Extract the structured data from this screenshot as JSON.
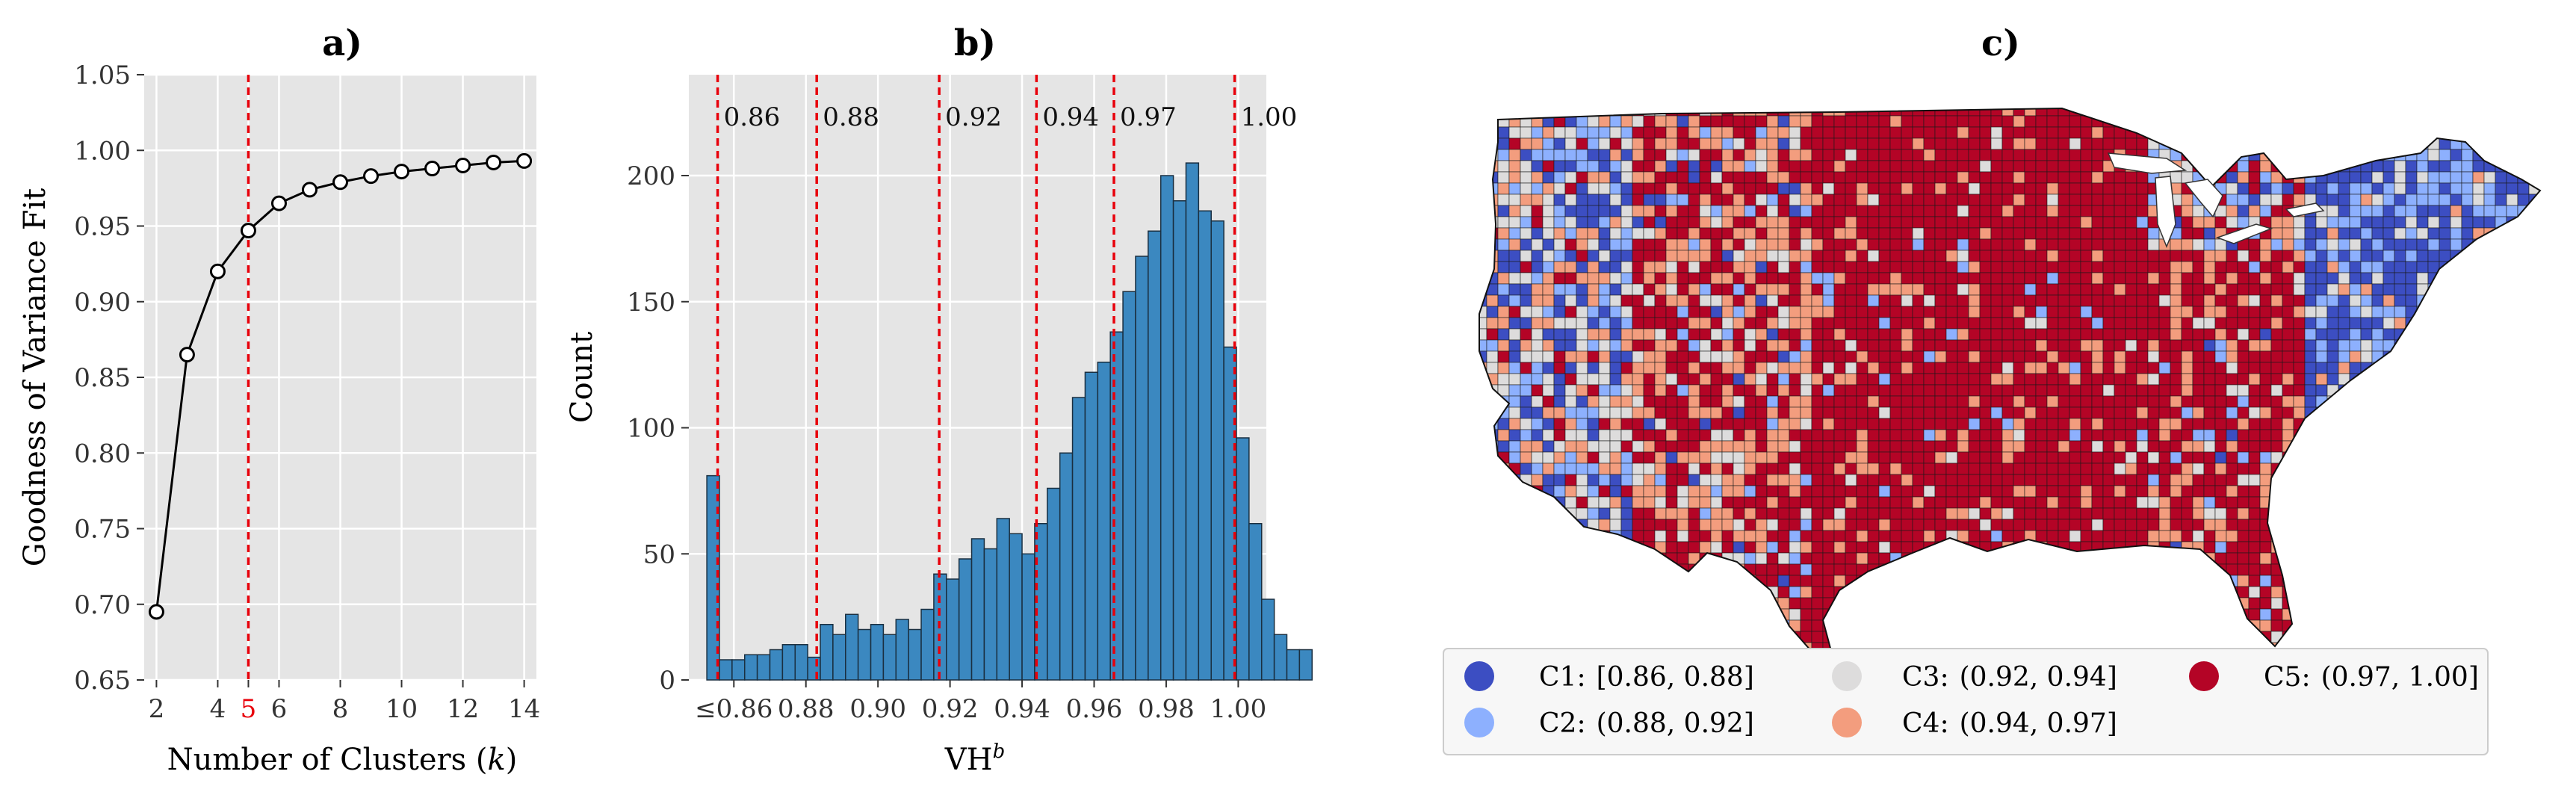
{
  "chart_data": [
    {
      "panel": "a",
      "type": "line",
      "title": "a)",
      "xlabel": "Number of Clusters (k)",
      "ylabel": "Goodness of Variance Fit",
      "x": [
        2,
        3,
        4,
        5,
        6,
        7,
        8,
        9,
        10,
        11,
        12,
        13,
        14
      ],
      "y": [
        0.695,
        0.865,
        0.92,
        0.947,
        0.965,
        0.974,
        0.979,
        0.983,
        0.986,
        0.988,
        0.99,
        0.992,
        0.993
      ],
      "xticks": [
        "2",
        "4",
        "5",
        "6",
        "8",
        "10",
        "12",
        "14"
      ],
      "highlight_x": "5",
      "yticks": [
        "0.65",
        "0.70",
        "0.75",
        "0.80",
        "0.85",
        "0.90",
        "0.95",
        "1.00",
        "1.05"
      ],
      "xlim": [
        1.6,
        14.4
      ],
      "ylim": [
        0.65,
        1.05
      ],
      "vline_x": 5,
      "colors": {
        "line": "#000000",
        "marker_face": "#ffffff",
        "vline": "#e8000b",
        "highlight_tick": "#e8000b",
        "background": "#e5e5e5",
        "grid": "#ffffff"
      }
    },
    {
      "panel": "b",
      "type": "bar",
      "title": "b)",
      "xlabel": "VH",
      "xlabel_sup": "b",
      "ylabel": "Count",
      "bin_start": 0.8525,
      "bin_width": 0.0035,
      "counts": [
        81,
        8,
        8,
        10,
        10,
        12,
        14,
        14,
        9,
        22,
        18,
        26,
        20,
        22,
        18,
        24,
        20,
        28,
        42,
        40,
        48,
        56,
        52,
        64,
        58,
        50,
        62,
        76,
        90,
        112,
        122,
        126,
        138,
        154,
        168,
        178,
        200,
        190,
        205,
        186,
        182,
        132,
        96,
        62,
        32,
        18,
        12,
        12
      ],
      "xticks": [
        "≤0.86",
        "0.88",
        "0.90",
        "0.92",
        "0.94",
        "0.96",
        "0.98",
        "1.00"
      ],
      "xtick_values": [
        0.86,
        0.88,
        0.9,
        0.92,
        0.94,
        0.96,
        0.98,
        1.0
      ],
      "yticks": [
        "0",
        "50",
        "100",
        "150",
        "200"
      ],
      "xlim": [
        0.8475,
        1.0078
      ],
      "ylim": [
        0,
        240
      ],
      "vlines": [
        {
          "x": 0.8555,
          "label": "0.86"
        },
        {
          "x": 0.883,
          "label": "0.88"
        },
        {
          "x": 0.917,
          "label": "0.92"
        },
        {
          "x": 0.944,
          "label": "0.94"
        },
        {
          "x": 0.9655,
          "label": "0.97"
        },
        {
          "x": 0.999,
          "label": "1.00"
        }
      ],
      "colors": {
        "bar": "#3b88c0",
        "edge": "#1a2f40",
        "vline": "#e8000b",
        "background": "#e5e5e5",
        "grid": "#ffffff"
      }
    }
  ],
  "map": {
    "title": "c)",
    "legend": [
      {
        "key": "C1:",
        "range": "[0.86, 0.88]",
        "color": "#3c4ec2"
      },
      {
        "key": "C2:",
        "range": "(0.88, 0.92]",
        "color": "#8db0fe"
      },
      {
        "key": "C3:",
        "range": "(0.92, 0.94]",
        "color": "#dddcdc"
      },
      {
        "key": "C4:",
        "range": "(0.94, 0.97]",
        "color": "#f39d7e"
      },
      {
        "key": "C5:",
        "range": "(0.97, 1.00]",
        "color": "#b40426"
      }
    ]
  }
}
